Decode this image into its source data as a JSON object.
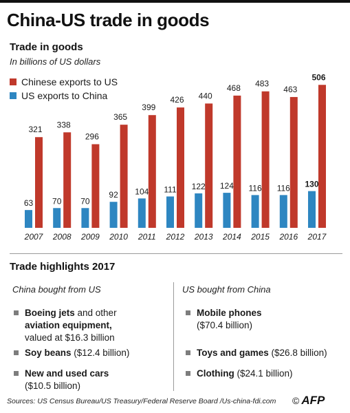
{
  "header": {
    "title": "China-US trade in goods"
  },
  "chart_section": {
    "title": "Trade in goods",
    "subtitle": "In billions of US dollars"
  },
  "legend": [
    {
      "label": "Chinese exports to US",
      "color": "#c0392b"
    },
    {
      "label": "US exports to China",
      "color": "#2e86c1"
    }
  ],
  "chart_data": {
    "type": "bar",
    "categories": [
      "2007",
      "2008",
      "2009",
      "2010",
      "2011",
      "2012",
      "2013",
      "2014",
      "2015",
      "2016",
      "2017"
    ],
    "series": [
      {
        "name": "US exports to China",
        "values": [
          63,
          70,
          70,
          92,
          104,
          111,
          122,
          124,
          116,
          116,
          130
        ],
        "color": "#2e86c1"
      },
      {
        "name": "Chinese exports to US",
        "values": [
          321,
          338,
          296,
          365,
          399,
          426,
          440,
          468,
          483,
          463,
          506
        ],
        "color": "#c0392b"
      }
    ],
    "highlight_category": "2017",
    "title": "Trade in goods",
    "subtitle": "In billions of US dollars",
    "legend_position": "top-left",
    "ylim": [
      0,
      520
    ],
    "grid": false
  },
  "highlights": {
    "title": "Trade highlights 2017",
    "china_bought": {
      "heading": "China bought from US",
      "items": [
        {
          "line1_bold": "Boeing jets",
          "line1_rest": " and other",
          "line2_bold": "aviation equipment,",
          "line3": "valued at $16.3 billion"
        },
        {
          "bold": "Soy beans",
          "rest": " ($12.4 billion)"
        },
        {
          "bold": "New and used cars",
          "line2": "($10.5 billion)"
        }
      ]
    },
    "us_bought": {
      "heading": "US bought from China",
      "items": [
        {
          "bold": "Mobile phones",
          "line2": "($70.4 billion)"
        },
        {
          "bold": "Toys and games",
          "rest": " ($26.8 billion)"
        },
        {
          "bold": "Clothing",
          "rest": " ($24.1 billion)"
        }
      ]
    }
  },
  "footer": {
    "sources": "Sources: US Census Bureau/US Treasury/Federal Reserve Board /Us-china-fdi.com",
    "copyright_symbol": "©",
    "logo": "AFP"
  }
}
